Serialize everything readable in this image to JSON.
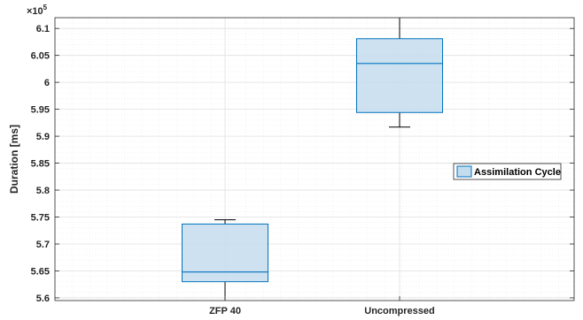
{
  "chart_data": {
    "type": "box",
    "title": "",
    "xlabel": "",
    "ylabel": "Duration [ms]",
    "y_exponent_label": "×10",
    "y_exponent_power": "5",
    "ylim": [
      5.595,
      6.12
    ],
    "y_ticks": [
      5.6,
      5.65,
      5.7,
      5.75,
      5.8,
      5.85,
      5.9,
      5.95,
      6,
      6.05,
      6.1
    ],
    "y_tick_labels": [
      "5.6",
      "5.65",
      "5.7",
      "5.75",
      "5.8",
      "5.85",
      "5.9",
      "5.95",
      "6",
      "6.05",
      "6.1"
    ],
    "categories": [
      "ZFP 40",
      "Uncompressed"
    ],
    "series": [
      {
        "name": "Assimilation Cycle",
        "boxes": [
          {
            "category": "ZFP 40",
            "whisker_low": 5.595,
            "q1": 5.63,
            "median": 5.648,
            "q3": 5.737,
            "whisker_high": 5.745
          },
          {
            "category": "Uncompressed",
            "whisker_low": 5.917,
            "q1": 5.944,
            "median": 6.035,
            "q3": 6.081,
            "whisker_high": 6.12
          }
        ]
      }
    ],
    "grid": true,
    "minor_grid": true,
    "legend_position": "right",
    "colors": {
      "box_edge": "#0072BD",
      "box_fill": "#c4dcee",
      "grid": "#e0e0e0",
      "axis": "#262626"
    }
  }
}
